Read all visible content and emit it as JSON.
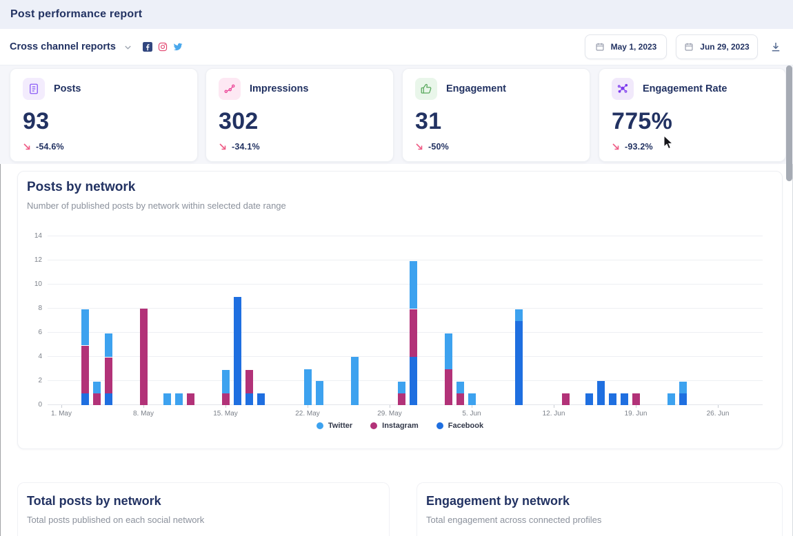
{
  "header": {
    "title": "Post performance report"
  },
  "toolbar": {
    "report_selector": "Cross channel reports",
    "network_icons": [
      "facebook-icon",
      "instagram-icon",
      "twitter-icon"
    ],
    "date_from": "May 1, 2023",
    "date_to": "Jun 29, 2023",
    "download_icon": "download-icon"
  },
  "stats": [
    {
      "label": "Posts",
      "value": "93",
      "delta": "-54.6%",
      "icon": "document-icon",
      "accent": "#8b5cf6",
      "accent_bg": "#f3ecfd"
    },
    {
      "label": "Impressions",
      "value": "302",
      "delta": "-34.1%",
      "icon": "route-icon",
      "accent": "#ec4899",
      "accent_bg": "#fde8f3"
    },
    {
      "label": "Engagement",
      "value": "31",
      "delta": "-50%",
      "icon": "thumbs-up-icon",
      "accent": "#58a85c",
      "accent_bg": "#e9f6ea"
    },
    {
      "label": "Engagement Rate",
      "value": "775%",
      "delta": "-93.2%",
      "icon": "network-icon",
      "accent": "#7c3aed",
      "accent_bg": "#f1e9fb"
    }
  ],
  "delta_arrow_color": "#ee5a84",
  "chart_card": {
    "title": "Posts by network",
    "subtitle": "Number of published posts by network within selected date range"
  },
  "chart_data": {
    "type": "bar",
    "stacked": true,
    "title": "Posts by network",
    "xlabel": "",
    "ylabel": "",
    "ylim": [
      0,
      14
    ],
    "yticks": [
      0,
      2,
      4,
      6,
      8,
      10,
      12,
      14
    ],
    "x_range": [
      "May 1, 2023",
      "Jun 29, 2023"
    ],
    "xticks": [
      {
        "label": "1. May",
        "day": 0
      },
      {
        "label": "8. May",
        "day": 7
      },
      {
        "label": "15. May",
        "day": 14
      },
      {
        "label": "22. May",
        "day": 21
      },
      {
        "label": "29. May",
        "day": 28
      },
      {
        "label": "5. Jun",
        "day": 35
      },
      {
        "label": "12. Jun",
        "day": 42
      },
      {
        "label": "19. Jun",
        "day": 49
      },
      {
        "label": "26. Jun",
        "day": 56
      }
    ],
    "stack_order": [
      "facebook",
      "instagram",
      "twitter"
    ],
    "colors": {
      "twitter": "#3da2ef",
      "instagram": "#b23278",
      "facebook": "#1f6fe0"
    },
    "legend": [
      {
        "name": "Twitter",
        "color": "#3da2ef"
      },
      {
        "name": "Instagram",
        "color": "#b23278"
      },
      {
        "name": "Facebook",
        "color": "#1f6fe0"
      }
    ],
    "bars": [
      {
        "date": "May 3",
        "day": 2,
        "facebook": 1,
        "instagram": 4,
        "twitter": 3
      },
      {
        "date": "May 4",
        "day": 3,
        "facebook": 0,
        "instagram": 1,
        "twitter": 1
      },
      {
        "date": "May 5",
        "day": 4,
        "facebook": 1,
        "instagram": 3,
        "twitter": 2
      },
      {
        "date": "May 8",
        "day": 7,
        "facebook": 0,
        "instagram": 8,
        "twitter": 0
      },
      {
        "date": "May 10",
        "day": 9,
        "facebook": 0,
        "instagram": 0,
        "twitter": 1
      },
      {
        "date": "May 11",
        "day": 10,
        "facebook": 0,
        "instagram": 0,
        "twitter": 1
      },
      {
        "date": "May 12",
        "day": 11,
        "facebook": 0,
        "instagram": 1,
        "twitter": 0
      },
      {
        "date": "May 15",
        "day": 14,
        "facebook": 0,
        "instagram": 1,
        "twitter": 2
      },
      {
        "date": "May 16",
        "day": 15,
        "facebook": 9,
        "instagram": 0,
        "twitter": 0
      },
      {
        "date": "May 17",
        "day": 16,
        "facebook": 1,
        "instagram": 2,
        "twitter": 0
      },
      {
        "date": "May 18",
        "day": 17,
        "facebook": 1,
        "instagram": 0,
        "twitter": 0
      },
      {
        "date": "May 22",
        "day": 21,
        "facebook": 0,
        "instagram": 0,
        "twitter": 3
      },
      {
        "date": "May 23",
        "day": 22,
        "facebook": 0,
        "instagram": 0,
        "twitter": 2
      },
      {
        "date": "May 26",
        "day": 25,
        "facebook": 0,
        "instagram": 0,
        "twitter": 4
      },
      {
        "date": "May 30",
        "day": 29,
        "facebook": 0,
        "instagram": 1,
        "twitter": 1
      },
      {
        "date": "May 31",
        "day": 30,
        "facebook": 4,
        "instagram": 4,
        "twitter": 4
      },
      {
        "date": "Jun 3",
        "day": 33,
        "facebook": 0,
        "instagram": 3,
        "twitter": 3
      },
      {
        "date": "Jun 4",
        "day": 34,
        "facebook": 0,
        "instagram": 1,
        "twitter": 1
      },
      {
        "date": "Jun 5",
        "day": 35,
        "facebook": 0,
        "instagram": 0,
        "twitter": 1
      },
      {
        "date": "Jun 9",
        "day": 39,
        "facebook": 7,
        "instagram": 0,
        "twitter": 1
      },
      {
        "date": "Jun 13",
        "day": 43,
        "facebook": 0,
        "instagram": 1,
        "twitter": 0
      },
      {
        "date": "Jun 15",
        "day": 45,
        "facebook": 1,
        "instagram": 0,
        "twitter": 0
      },
      {
        "date": "Jun 16",
        "day": 46,
        "facebook": 2,
        "instagram": 0,
        "twitter": 0
      },
      {
        "date": "Jun 17",
        "day": 47,
        "facebook": 1,
        "instagram": 0,
        "twitter": 0
      },
      {
        "date": "Jun 18",
        "day": 48,
        "facebook": 1,
        "instagram": 0,
        "twitter": 0
      },
      {
        "date": "Jun 19",
        "day": 49,
        "facebook": 0,
        "instagram": 1,
        "twitter": 0
      },
      {
        "date": "Jun 22",
        "day": 52,
        "facebook": 0,
        "instagram": 0,
        "twitter": 1
      },
      {
        "date": "Jun 23",
        "day": 53,
        "facebook": 1,
        "instagram": 0,
        "twitter": 1
      }
    ],
    "legend_position": "bottom",
    "grid": true
  },
  "sections": [
    {
      "title": "Total posts by network",
      "subtitle": "Total posts published on each social network"
    },
    {
      "title": "Engagement by network",
      "subtitle": "Total engagement across connected profiles"
    }
  ]
}
